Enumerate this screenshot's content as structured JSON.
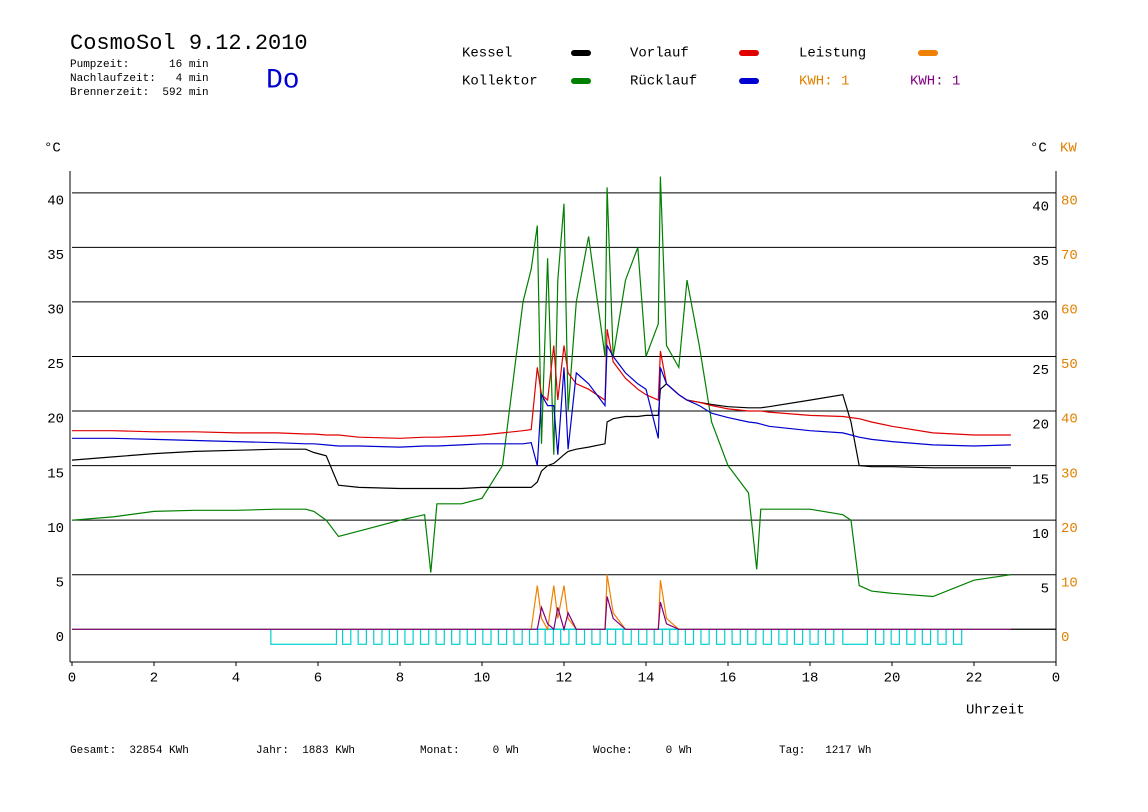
{
  "chart_data": {
    "type": "line",
    "title": "CosmoSol 9.12.2010",
    "info": [
      "Pumpzeit:      16 min",
      "Nachlaufzeit:   4 min",
      "Brennerzeit:  592 min"
    ],
    "weekday": "Do",
    "y_label": "°C",
    "y2_labels": [
      "°C",
      "KW"
    ],
    "x_label": "Uhrzeit",
    "kwh_label": "KWH: 1",
    "footer": [
      "Gesamt:  32854 KWh",
      "Jahr:  1883 KWh",
      "Monat:     0 Wh",
      "Woche:     0 Wh",
      "Tag:   1217 Wh"
    ],
    "xlim": [
      0,
      24
    ],
    "xticks": [
      0,
      2,
      4,
      6,
      8,
      10,
      12,
      14,
      16,
      18,
      20,
      22,
      {
        "value": 24,
        "label": "0"
      }
    ],
    "ylim": [
      -3,
      42
    ],
    "yticks": [
      0,
      5,
      10,
      15,
      20,
      25,
      30,
      35,
      40
    ],
    "y_right_ticks": [
      5,
      10,
      15,
      20,
      25,
      30,
      35,
      40
    ],
    "y2lim": [
      -6,
      84
    ],
    "y2ticks": [
      0,
      10,
      20,
      30,
      40,
      50,
      60,
      70,
      80
    ],
    "grid": true,
    "x": [
      0,
      1,
      2,
      3,
      4,
      5,
      5.7,
      5.9,
      6.2,
      6.5,
      7,
      8,
      8.6,
      8.75,
      8.9,
      9.5,
      10,
      10.5,
      11,
      11.2,
      11.35,
      11.45,
      11.6,
      11.75,
      11.85,
      12.0,
      12.1,
      12.3,
      12.6,
      13.0,
      13.05,
      13.2,
      13.5,
      13.8,
      14.0,
      14.3,
      14.35,
      14.5,
      14.8,
      15.0,
      15.3,
      15.6,
      16,
      16.5,
      16.7,
      16.8,
      17,
      18,
      18.8,
      19.0,
      19.2,
      19.5,
      20,
      21,
      22,
      22.9
    ],
    "series": [
      {
        "name": "Kessel",
        "color": "#000000",
        "values": [
          15.5,
          15.8,
          16.1,
          16.3,
          16.4,
          16.5,
          16.5,
          16.2,
          15.9,
          13.2,
          13,
          12.9,
          12.9,
          12.9,
          12.9,
          12.9,
          13,
          13,
          13,
          13,
          13.5,
          14.5,
          15,
          15.2,
          15.5,
          16,
          16.3,
          16.5,
          16.7,
          17,
          19,
          19.3,
          19.5,
          19.5,
          19.6,
          19.6,
          22,
          22.5,
          21.5,
          21,
          20.8,
          20.6,
          20.4,
          20.3,
          20.3,
          20.3,
          20.4,
          21,
          21.5,
          19,
          15,
          14.9,
          14.9,
          14.8,
          14.8,
          14.8
        ]
      },
      {
        "name": "Kollektor",
        "color": "#008000",
        "values": [
          10,
          10.3,
          10.8,
          10.9,
          10.9,
          11,
          11,
          10.8,
          10,
          8.5,
          9,
          10,
          10.5,
          5.2,
          11.5,
          11.5,
          12,
          15,
          30,
          33,
          37,
          17,
          34,
          16,
          32,
          39,
          20,
          30,
          36,
          25,
          40.5,
          25,
          32,
          35,
          25,
          28,
          41.5,
          26,
          24,
          32,
          26,
          19,
          15,
          12.5,
          5.5,
          11,
          11,
          11,
          10.5,
          10,
          4,
          3.5,
          3.3,
          3,
          4.5,
          5
        ]
      },
      {
        "name": "Vorlauf",
        "color": "#e00000",
        "values": [
          18.2,
          18.2,
          18.1,
          18.1,
          18,
          18,
          17.9,
          17.9,
          17.8,
          17.8,
          17.6,
          17.5,
          17.6,
          17.6,
          17.6,
          17.7,
          17.8,
          18,
          18.2,
          18.3,
          24,
          21.5,
          21,
          26,
          21,
          26,
          23.5,
          22.5,
          22,
          21,
          27.5,
          24.5,
          23,
          22,
          21.5,
          21,
          25.5,
          22.5,
          21.5,
          21,
          20.8,
          20.5,
          20.2,
          20,
          20,
          20,
          19.9,
          19.6,
          19.5,
          19.4,
          19.3,
          19,
          18.6,
          18,
          17.8,
          17.8
        ]
      },
      {
        "name": "Rücklauf",
        "color": "#0000d0",
        "values": [
          17.5,
          17.5,
          17.4,
          17.3,
          17.2,
          17.1,
          17,
          17,
          16.9,
          16.8,
          16.8,
          16.7,
          16.8,
          16.8,
          16.8,
          16.9,
          17,
          17,
          17,
          17.1,
          15,
          21.5,
          20.5,
          20.5,
          16,
          24,
          16.5,
          23.5,
          22.5,
          20.5,
          26,
          25,
          23.5,
          22.5,
          22,
          17.5,
          24,
          22.5,
          21.5,
          21,
          20.5,
          19.8,
          19.4,
          19,
          18.9,
          18.8,
          18.6,
          18.2,
          18,
          17.8,
          17.6,
          17.4,
          17.2,
          16.9,
          16.8,
          16.9
        ]
      },
      {
        "name": "Leistung",
        "color": "#f08000",
        "axis": "y2",
        "values": [
          0,
          0,
          0,
          0,
          0,
          0,
          0,
          0,
          0,
          0,
          0,
          0,
          0,
          0,
          0,
          0,
          0,
          0,
          0,
          0,
          8,
          2,
          0,
          8,
          2,
          8,
          2,
          0,
          0,
          0,
          10,
          3,
          0,
          0,
          0,
          0,
          9,
          2,
          0,
          0,
          0,
          0,
          0,
          0,
          0,
          0,
          0,
          0,
          0,
          0,
          0,
          0,
          0,
          0,
          0,
          0
        ]
      },
      {
        "name": "KWH: 1",
        "color": "#800080",
        "axis": "y2",
        "values": [
          0,
          0,
          0,
          0,
          0,
          0,
          0,
          0,
          0,
          0,
          0,
          0,
          0,
          0,
          0,
          0,
          0,
          0,
          0,
          0,
          0,
          4,
          1,
          0,
          4,
          0,
          3,
          0,
          0,
          0,
          6,
          2,
          0,
          0,
          0,
          0,
          5,
          1,
          0,
          0,
          0,
          0,
          0,
          0,
          0,
          0,
          0,
          0,
          0,
          0,
          0,
          0,
          0,
          0,
          0,
          0
        ]
      }
    ],
    "pump_color": "#00d0d0",
    "pump_on": [
      [
        4.85,
        6.45
      ],
      [
        6.6,
        6.8
      ],
      [
        6.98,
        7.18
      ],
      [
        7.36,
        7.56
      ],
      [
        7.74,
        7.94
      ],
      [
        8.12,
        8.32
      ],
      [
        8.5,
        8.7
      ],
      [
        8.88,
        9.08
      ],
      [
        9.26,
        9.46
      ],
      [
        9.64,
        9.84
      ],
      [
        10.02,
        10.22
      ],
      [
        10.4,
        10.6
      ],
      [
        10.78,
        10.98
      ],
      [
        11.16,
        11.36
      ],
      [
        11.54,
        11.74
      ],
      [
        11.92,
        12.12
      ],
      [
        12.3,
        12.5
      ],
      [
        12.68,
        12.88
      ],
      [
        13.06,
        13.26
      ],
      [
        13.44,
        13.64
      ],
      [
        13.82,
        14.02
      ],
      [
        14.2,
        14.4
      ],
      [
        14.58,
        14.78
      ],
      [
        14.96,
        15.16
      ],
      [
        15.34,
        15.54
      ],
      [
        15.72,
        15.92
      ],
      [
        16.1,
        16.3
      ],
      [
        16.48,
        16.68
      ],
      [
        16.86,
        17.06
      ],
      [
        17.24,
        17.44
      ],
      [
        17.62,
        17.82
      ],
      [
        18.0,
        18.2
      ],
      [
        18.38,
        18.58
      ],
      [
        18.8,
        19.4
      ],
      [
        19.6,
        19.8
      ],
      [
        19.98,
        20.18
      ],
      [
        20.36,
        20.56
      ],
      [
        20.74,
        20.94
      ],
      [
        21.12,
        21.32
      ],
      [
        21.5,
        21.7
      ]
    ]
  }
}
